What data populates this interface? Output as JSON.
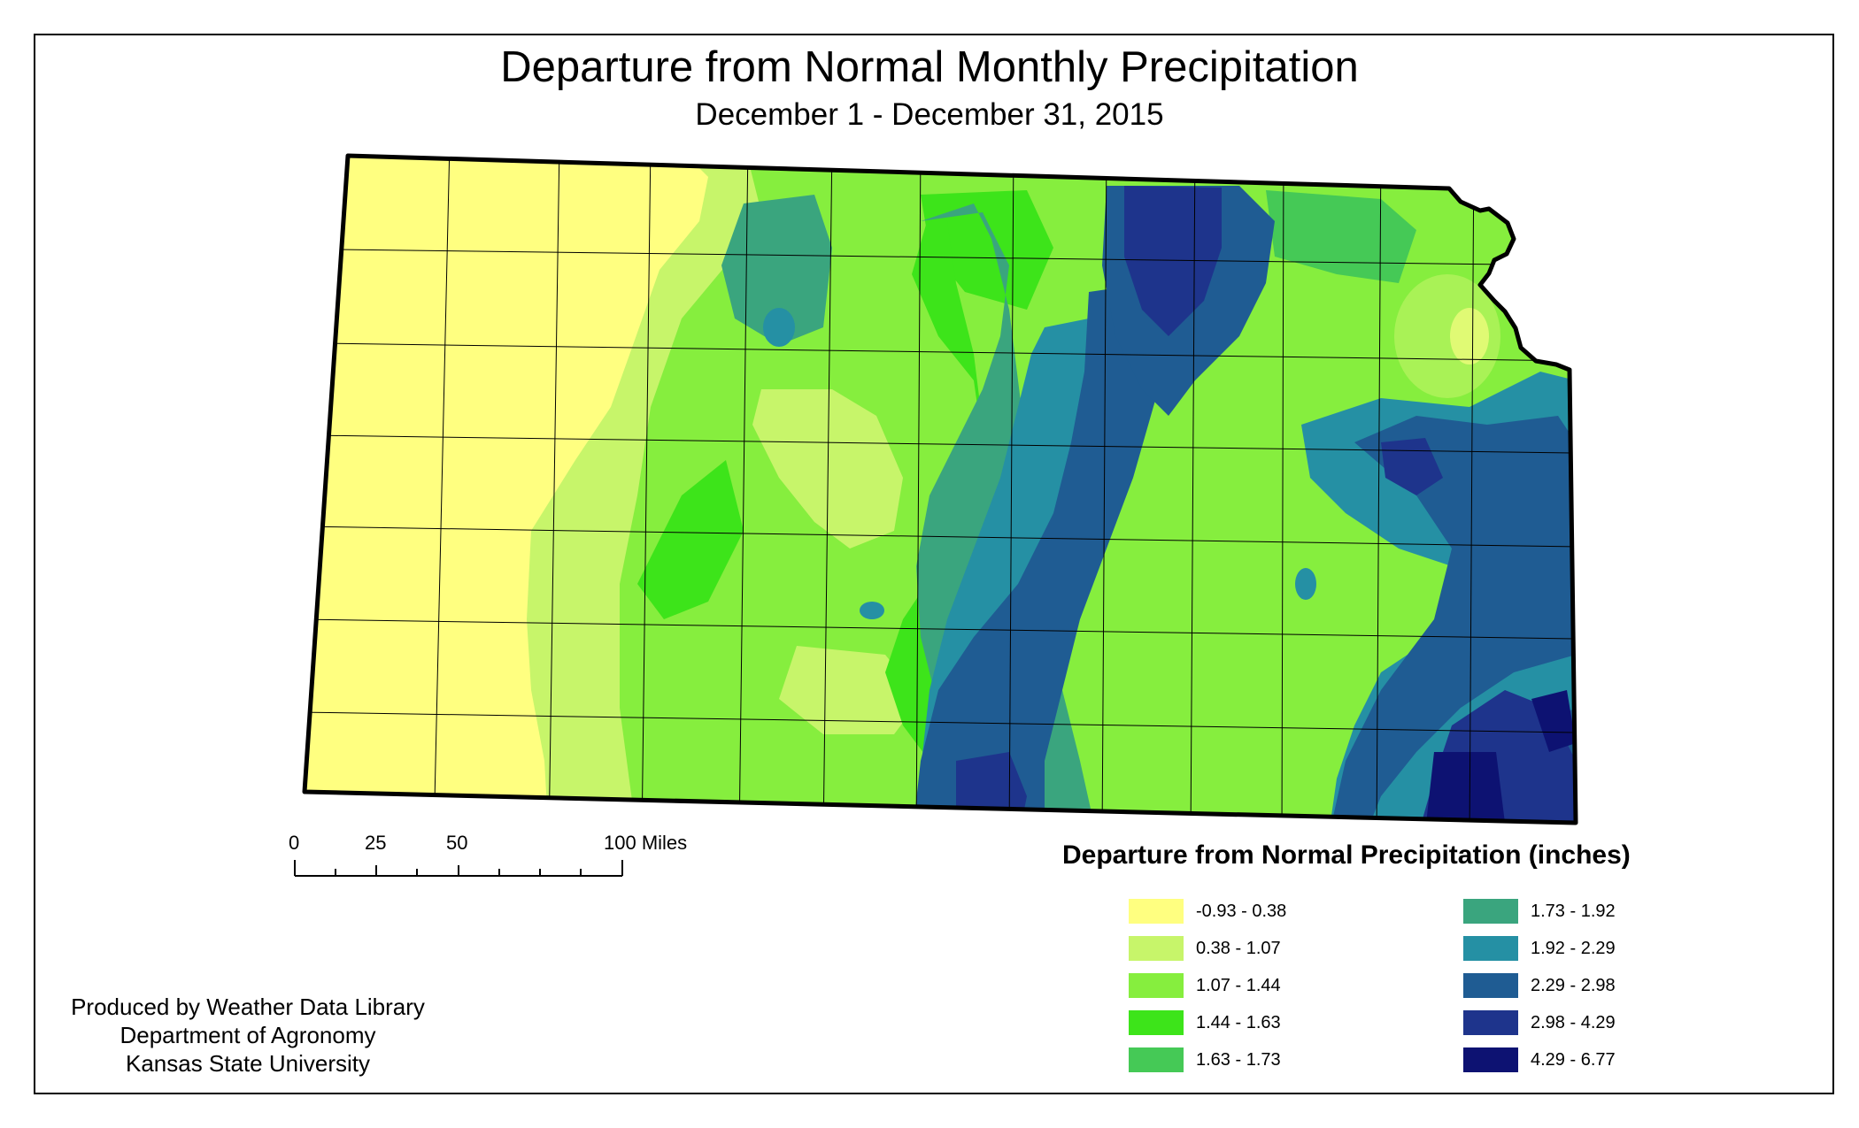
{
  "title": "Departure from Normal Monthly Precipitation",
  "subtitle": "December 1 - December 31, 2015",
  "scale_bar": {
    "labels": [
      "0",
      "25",
      "50",
      "100 Miles"
    ]
  },
  "legend": {
    "title": "Departure from Normal Precipitation (inches)",
    "items": [
      {
        "label": "-0.93 - 0.38",
        "color": "#FFFF80"
      },
      {
        "label": "0.38 - 1.07",
        "color": "#C7F56A"
      },
      {
        "label": "1.07 - 1.44",
        "color": "#86EE3E"
      },
      {
        "label": "1.44 - 1.63",
        "color": "#3DE41A"
      },
      {
        "label": "1.63 - 1.73",
        "color": "#45C956"
      },
      {
        "label": "1.73 - 1.92",
        "color": "#3AA57E"
      },
      {
        "label": "1.92 - 2.29",
        "color": "#2590A4"
      },
      {
        "label": "2.29 - 2.98",
        "color": "#1F5C93"
      },
      {
        "label": "2.98 - 4.29",
        "color": "#1E348C"
      },
      {
        "label": "4.29 - 6.77",
        "color": "#0D1272"
      }
    ]
  },
  "credits": {
    "line1": "Produced by Weather Data Library",
    "line2": "Department of Agronomy",
    "line3": "Kansas State University"
  }
}
